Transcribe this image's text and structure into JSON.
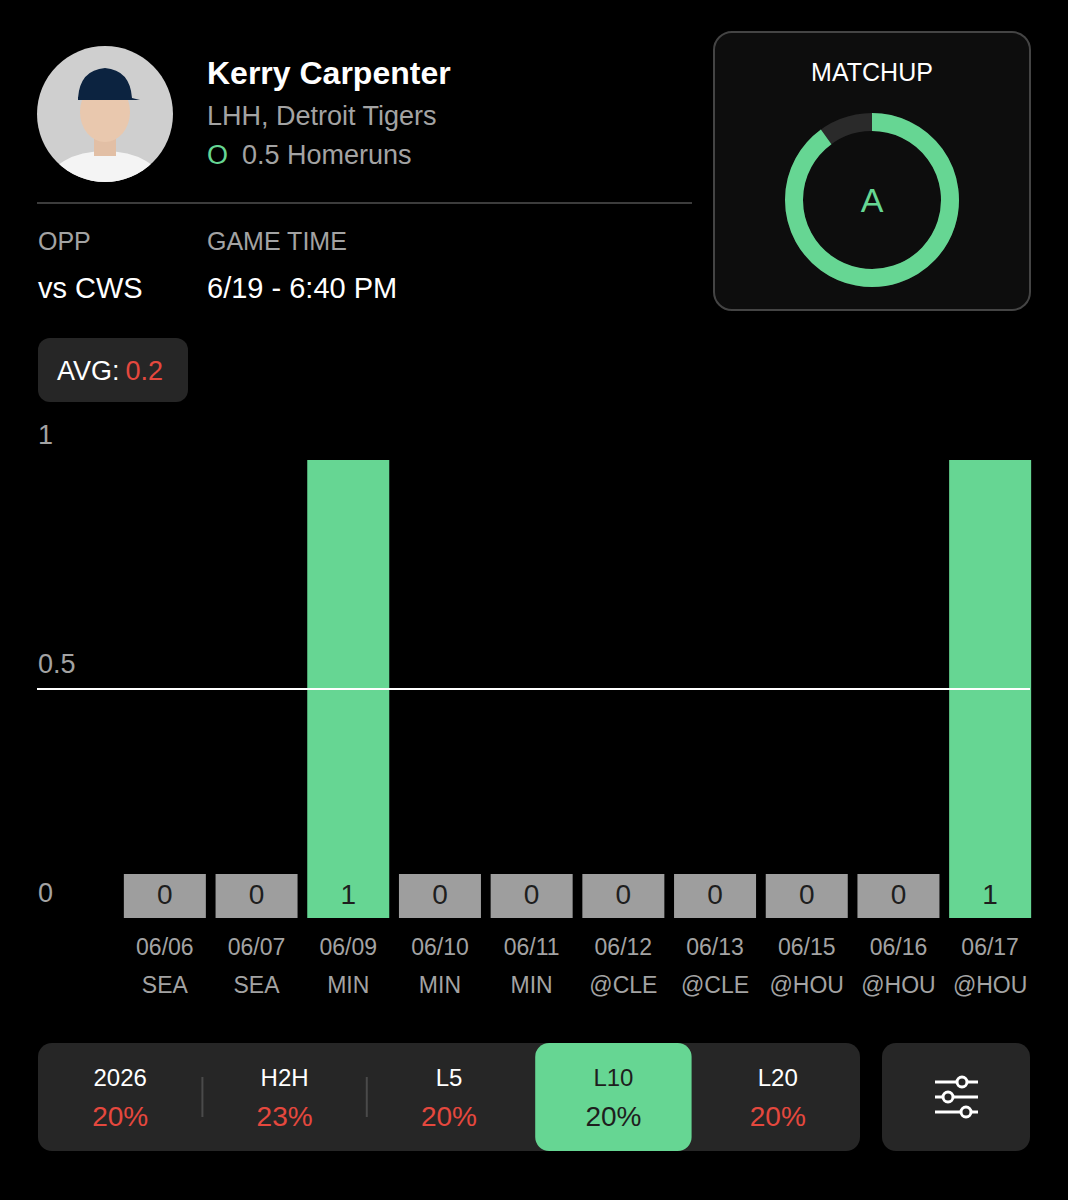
{
  "header": {
    "player": "Kerry Carpenter",
    "team": "LHH, Detroit Tigers",
    "prop_marker": "O",
    "prop": "0.5 Homeruns",
    "opp_label": "OPP",
    "opp": "vs CWS",
    "time_label": "GAME TIME",
    "time": "6/19 - 6:40 PM",
    "matchup_label": "MATCHUP",
    "matchup_grade": "A",
    "avg_label": "AVG:",
    "avg": 0.2
  },
  "chart_data": {
    "type": "bar",
    "categories": [
      "06/06 SEA",
      "06/07 SEA",
      "06/09 MIN",
      "06/10 MIN",
      "06/11 MIN",
      "06/12 @CLE",
      "06/13 @CLE",
      "06/15 @HOU",
      "06/16 @HOU",
      "06/17 @HOU"
    ],
    "values": [
      0,
      0,
      1,
      0,
      0,
      0,
      0,
      0,
      0,
      1
    ],
    "colors": [
      "#9e9e9e",
      "#9e9e9e",
      "#66d693",
      "#9e9e9e",
      "#9e9e9e",
      "#9e9e9e",
      "#9e9e9e",
      "#9e9e9e",
      "#9e9e9e",
      "#66d693"
    ],
    "ylim": [
      0,
      1
    ],
    "yticks": [
      0,
      0.5,
      1
    ],
    "threshold": 0.5,
    "grid": false,
    "data_labels": true
  },
  "tabs": [
    {
      "label": "2026",
      "value": "20%",
      "selected": false
    },
    {
      "label": "H2H",
      "value": "23%",
      "selected": false
    },
    {
      "label": "L5",
      "value": "20%",
      "selected": false
    },
    {
      "label": "L10",
      "value": "20%",
      "selected": true
    },
    {
      "label": "L20",
      "value": "20%",
      "selected": false
    }
  ]
}
